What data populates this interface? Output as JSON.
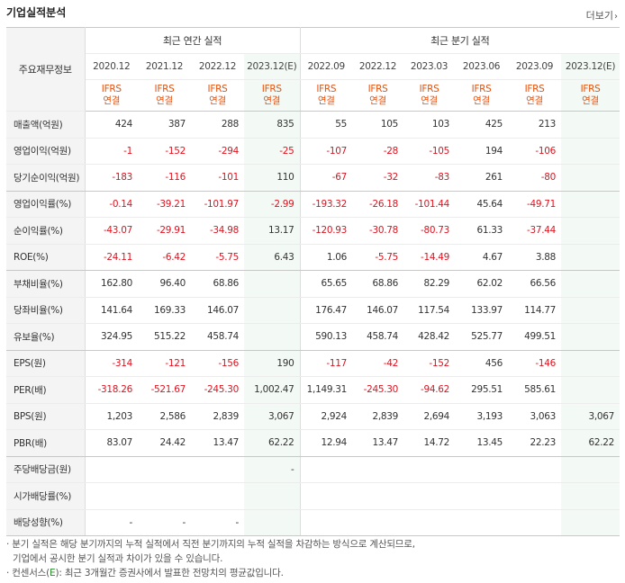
{
  "header": {
    "title": "기업실적분석",
    "more_label": "더보기",
    "more_icon": "chevron-right-icon"
  },
  "table": {
    "label_header": "주요재무정보",
    "annual_group": "최근 연간 실적",
    "quarter_group": "최근 분기 실적",
    "periods": [
      "2020.12",
      "2021.12",
      "2022.12",
      "2023.12(E)",
      "2022.09",
      "2022.12",
      "2023.03",
      "2023.06",
      "2023.09",
      "2023.12(E)"
    ],
    "standard_top": "IFRS",
    "standard_bottom": "연결",
    "rows": [
      {
        "label": "매출액(억원)",
        "values": [
          "424",
          "387",
          "288",
          "835",
          "55",
          "105",
          "103",
          "425",
          "213",
          ""
        ]
      },
      {
        "label": "영업이익(억원)",
        "values": [
          "-1",
          "-152",
          "-294",
          "-25",
          "-107",
          "-28",
          "-105",
          "194",
          "-106",
          ""
        ]
      },
      {
        "label": "당기순이익(억원)",
        "values": [
          "-183",
          "-116",
          "-101",
          "110",
          "-67",
          "-32",
          "-83",
          "261",
          "-80",
          ""
        ]
      },
      {
        "label": "영업이익률(%)",
        "values": [
          "-0.14",
          "-39.21",
          "-101.97",
          "-2.99",
          "-193.32",
          "-26.18",
          "-101.44",
          "45.64",
          "-49.71",
          ""
        ]
      },
      {
        "label": "순이익률(%)",
        "values": [
          "-43.07",
          "-29.91",
          "-34.98",
          "13.17",
          "-120.93",
          "-30.78",
          "-80.73",
          "61.33",
          "-37.44",
          ""
        ]
      },
      {
        "label": "ROE(%)",
        "values": [
          "-24.11",
          "-6.42",
          "-5.75",
          "6.43",
          "1.06",
          "-5.75",
          "-14.49",
          "4.67",
          "3.88",
          ""
        ]
      },
      {
        "label": "부채비율(%)",
        "values": [
          "162.80",
          "96.40",
          "68.86",
          "",
          "65.65",
          "68.86",
          "82.29",
          "62.02",
          "66.56",
          ""
        ]
      },
      {
        "label": "당좌비율(%)",
        "values": [
          "141.64",
          "169.33",
          "146.07",
          "",
          "176.47",
          "146.07",
          "117.54",
          "133.97",
          "114.77",
          ""
        ]
      },
      {
        "label": "유보율(%)",
        "values": [
          "324.95",
          "515.22",
          "458.74",
          "",
          "590.13",
          "458.74",
          "428.42",
          "525.77",
          "499.51",
          ""
        ]
      },
      {
        "label": "EPS(원)",
        "values": [
          "-314",
          "-121",
          "-156",
          "190",
          "-117",
          "-42",
          "-152",
          "456",
          "-146",
          ""
        ]
      },
      {
        "label": "PER(배)",
        "values": [
          "-318.26",
          "-521.67",
          "-245.30",
          "1,002.47",
          "1,149.31",
          "-245.30",
          "-94.62",
          "295.51",
          "585.61",
          ""
        ]
      },
      {
        "label": "BPS(원)",
        "values": [
          "1,203",
          "2,586",
          "2,839",
          "3,067",
          "2,924",
          "2,839",
          "2,694",
          "3,193",
          "3,063",
          "3,067"
        ]
      },
      {
        "label": "PBR(배)",
        "values": [
          "83.07",
          "24.42",
          "13.47",
          "62.22",
          "12.94",
          "13.47",
          "14.72",
          "13.45",
          "22.23",
          "62.22"
        ]
      },
      {
        "label": "주당배당금(원)",
        "values": [
          "",
          "",
          "",
          "-",
          "",
          "",
          "",
          "",
          "",
          ""
        ]
      },
      {
        "label": "시가배당률(%)",
        "values": [
          "",
          "",
          "",
          "",
          "",
          "",
          "",
          "",
          "",
          ""
        ]
      },
      {
        "label": "배당성향(%)",
        "values": [
          "-",
          "-",
          "-",
          "",
          "",
          "",
          "",
          "",
          "",
          ""
        ]
      }
    ]
  },
  "notes": {
    "line1": "· 분기 실적은 해당 분기까지의 누적 실적에서 직전 분기까지의 누적 실적을 차감하는 방식으로 계산되므로,",
    "line2": "  기업에서 공시한 분기 실적과 차이가 있을 수 있습니다.",
    "line3_prefix": "· 컨센서스(",
    "line3_em": "E",
    "line3_suffix": "): 최근 3개월간 증권사에서 발표한 전망치의 평균값입니다."
  },
  "colors": {
    "negative": "#e0131f",
    "standard": "#e5530f",
    "estimate_bg": "#f3f9f4",
    "label_bg": "#f4f4f4"
  }
}
